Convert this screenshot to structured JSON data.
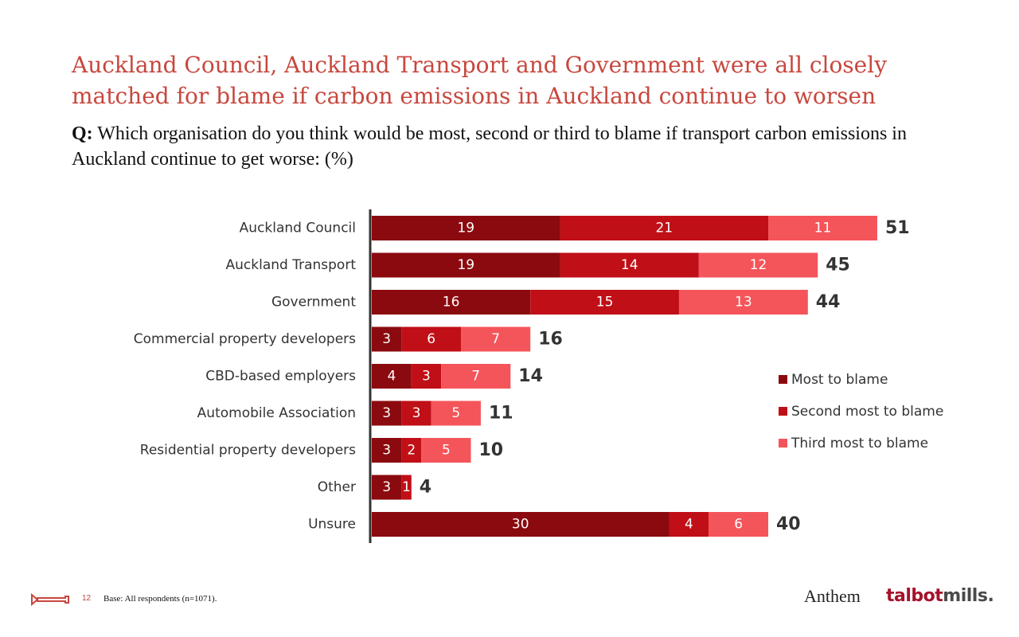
{
  "header": {
    "title": "Auckland Council, Auckland Transport and Government were all closely matched for blame if carbon emissions in Auckland continue to worsen",
    "question_label": "Q:",
    "question_text": " Which organisation do you think would be most, second or third to blame if transport carbon emissions in Auckland continue to get worse: (%)"
  },
  "chart_data": {
    "type": "bar",
    "orientation": "horizontal",
    "stacked": true,
    "categories": [
      "Auckland Council",
      "Auckland Transport",
      "Government",
      "Commercial property developers",
      "CBD-based employers",
      "Automobile Association",
      "Residential property developers",
      "Other",
      "Unsure"
    ],
    "series": [
      {
        "name": "Most to blame",
        "color": "#8b0a0f",
        "values": [
          19,
          19,
          16,
          3,
          4,
          3,
          3,
          3,
          30
        ]
      },
      {
        "name": "Second most to blame",
        "color": "#c00f17",
        "values": [
          21,
          14,
          15,
          6,
          3,
          3,
          2,
          1,
          4
        ]
      },
      {
        "name": "Third most to blame",
        "color": "#f4555a",
        "values": [
          11,
          12,
          13,
          7,
          7,
          5,
          5,
          0,
          6
        ]
      }
    ],
    "totals": [
      51,
      45,
      44,
      16,
      14,
      11,
      10,
      4,
      40
    ],
    "xlim": [
      0,
      51
    ],
    "grid": false,
    "legend_position": "right"
  },
  "footer": {
    "page_number": "12",
    "base_note": "Base: All respondents (n=1071).",
    "logo_anthem": "Anthem",
    "logo_talbot_part1": "talbot",
    "logo_talbot_part2": "mills."
  },
  "icons": {
    "footer_icon": "trumpet-icon"
  }
}
